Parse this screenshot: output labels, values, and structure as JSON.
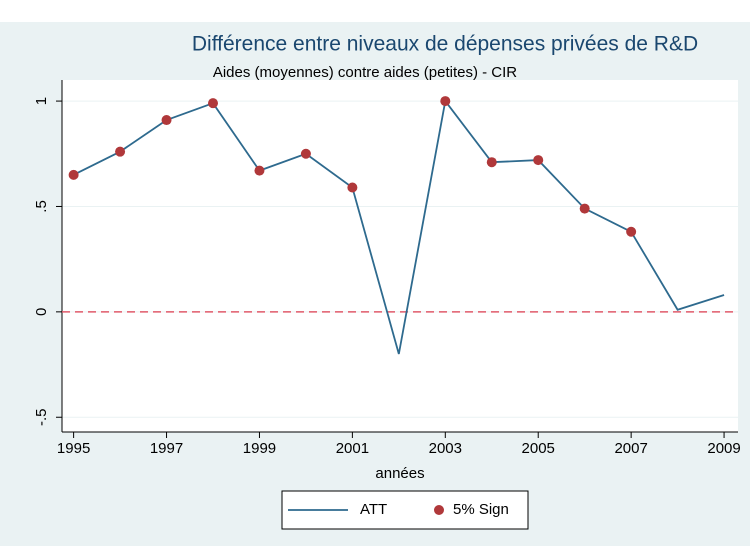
{
  "chart_data": {
    "type": "line",
    "title": "Différence entre niveaux de dépenses privées de R&D",
    "subtitle": "Aides  (moyennes) contre aides (petites) -  CIR",
    "xlabel": "années",
    "x": [
      1995,
      1996,
      1997,
      1998,
      1999,
      2000,
      2001,
      2002,
      2003,
      2004,
      2005,
      2006,
      2007,
      2008,
      2009
    ],
    "series": [
      {
        "name": "ATT",
        "color": "#2e6a8e",
        "mark": "line",
        "values": [
          0.65,
          0.76,
          0.91,
          0.99,
          0.67,
          0.75,
          0.59,
          -0.2,
          1.0,
          0.71,
          0.72,
          0.49,
          0.38,
          0.01,
          0.08
        ]
      },
      {
        "name": "5% Sign",
        "color": "#b0383a",
        "mark": "dot",
        "values": [
          0.65,
          0.76,
          0.91,
          0.99,
          0.67,
          0.75,
          0.59,
          null,
          1.0,
          0.71,
          0.72,
          0.49,
          0.38,
          null,
          null
        ]
      }
    ],
    "xlim": [
      1994.75,
      2009.3
    ],
    "xticks": [
      1995,
      1997,
      1999,
      2001,
      2003,
      2005,
      2007,
      2009
    ],
    "ylim": [
      -0.57,
      1.1
    ],
    "yticks": [
      {
        "value": -0.5,
        "label": "-.5"
      },
      0,
      {
        "value": 0.5,
        "label": ".5"
      },
      1
    ],
    "refline": {
      "value": 0,
      "color": "#e05a6a"
    },
    "grid": true,
    "legend": "bottom"
  }
}
